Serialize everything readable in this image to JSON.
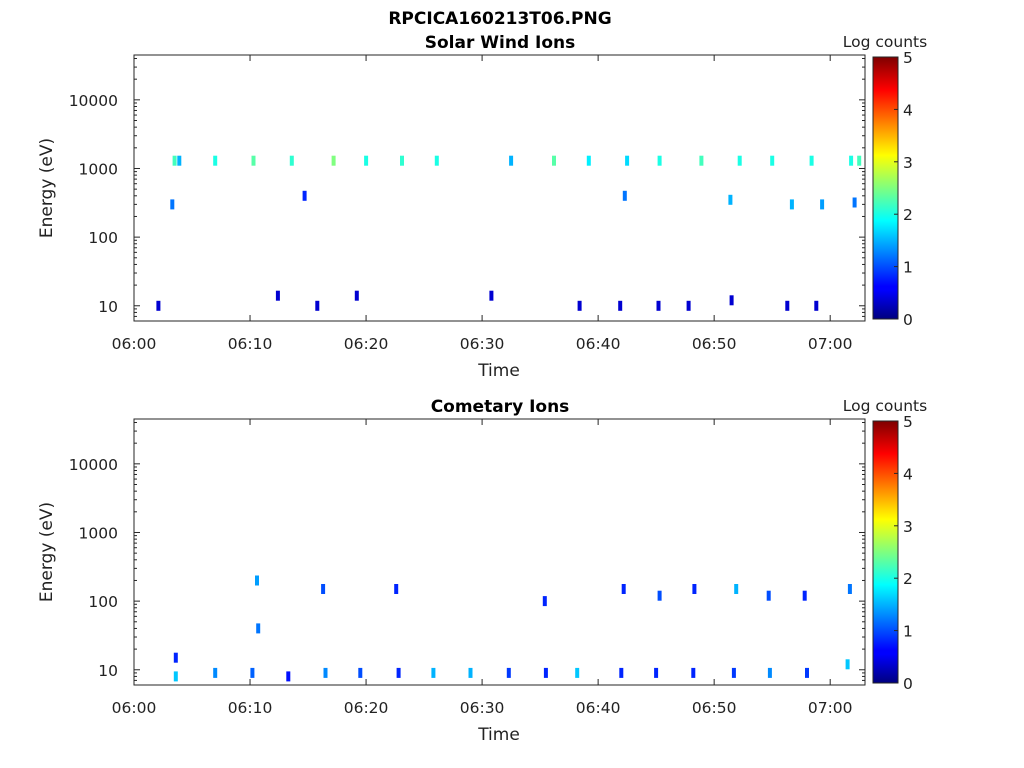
{
  "figure_title": "RPCICA160213T06.PNG",
  "colorbar": {
    "label": "Log counts",
    "ticks": [
      "0",
      "1",
      "2",
      "3",
      "4",
      "5"
    ],
    "range": [
      0,
      5
    ],
    "colormap": "jet"
  },
  "chart_data": [
    {
      "type": "heatmap",
      "title": "Solar Wind Ions",
      "xlabel": "Time",
      "ylabel": "Energy (eV)",
      "x_ticks": [
        "06:00",
        "06:10",
        "06:20",
        "06:30",
        "06:40",
        "06:50",
        "07:00"
      ],
      "y_ticks": [
        "10",
        "100",
        "1000",
        "10000"
      ],
      "xlim": [
        "06:00",
        "07:03"
      ],
      "ylim": [
        6,
        45000
      ],
      "yscale": "log",
      "cells": [
        [
          3.5,
          1300,
          2.2
        ],
        [
          3.9,
          1300,
          1.5
        ],
        [
          7.0,
          1300,
          2.0
        ],
        [
          10.3,
          1300,
          2.3
        ],
        [
          13.6,
          1300,
          2.1
        ],
        [
          17.2,
          1300,
          2.5
        ],
        [
          20.0,
          1300,
          2.0
        ],
        [
          23.1,
          1300,
          2.1
        ],
        [
          26.1,
          1300,
          2.0
        ],
        [
          32.5,
          1300,
          1.5
        ],
        [
          36.2,
          1300,
          2.3
        ],
        [
          39.2,
          1300,
          1.8
        ],
        [
          42.5,
          1300,
          1.7
        ],
        [
          45.3,
          1300,
          2.0
        ],
        [
          48.9,
          1300,
          2.2
        ],
        [
          52.2,
          1300,
          2.0
        ],
        [
          55.0,
          1300,
          2.0
        ],
        [
          58.4,
          1300,
          2.0
        ],
        [
          61.8,
          1300,
          2.0
        ],
        [
          62.5,
          1300,
          2.2
        ],
        [
          3.3,
          300,
          1.2
        ],
        [
          14.7,
          400,
          0.8
        ],
        [
          42.3,
          400,
          1.2
        ],
        [
          51.4,
          350,
          1.5
        ],
        [
          56.7,
          300,
          1.5
        ],
        [
          59.3,
          300,
          1.4
        ],
        [
          62.1,
          320,
          1.2
        ],
        [
          2.1,
          10,
          0.4
        ],
        [
          12.4,
          14,
          0.4
        ],
        [
          15.8,
          10,
          0.4
        ],
        [
          19.2,
          14,
          0.4
        ],
        [
          30.8,
          14,
          0.4
        ],
        [
          38.4,
          10,
          0.4
        ],
        [
          41.9,
          10,
          0.4
        ],
        [
          45.2,
          10,
          0.4
        ],
        [
          47.8,
          10,
          0.4
        ],
        [
          51.5,
          12,
          0.4
        ],
        [
          56.3,
          10,
          0.4
        ],
        [
          58.8,
          10,
          0.4
        ]
      ]
    },
    {
      "type": "heatmap",
      "title": "Cometary Ions",
      "xlabel": "Time",
      "ylabel": "Energy (eV)",
      "x_ticks": [
        "06:00",
        "06:10",
        "06:20",
        "06:30",
        "06:40",
        "06:50",
        "07:00"
      ],
      "y_ticks": [
        "10",
        "100",
        "1000",
        "10000"
      ],
      "xlim": [
        "06:00",
        "07:03"
      ],
      "ylim": [
        6,
        45000
      ],
      "yscale": "log",
      "cells": [
        [
          3.6,
          8,
          1.6
        ],
        [
          3.6,
          15,
          0.8
        ],
        [
          7.0,
          9,
          1.3
        ],
        [
          10.2,
          9,
          1.1
        ],
        [
          13.3,
          8,
          0.7
        ],
        [
          16.5,
          9,
          1.3
        ],
        [
          19.5,
          9,
          1.0
        ],
        [
          22.8,
          9,
          0.8
        ],
        [
          25.8,
          9,
          1.5
        ],
        [
          29.0,
          9,
          1.5
        ],
        [
          32.3,
          9,
          0.9
        ],
        [
          35.5,
          9,
          0.8
        ],
        [
          38.2,
          9,
          1.6
        ],
        [
          42.0,
          9,
          0.8
        ],
        [
          45.0,
          9,
          0.8
        ],
        [
          48.2,
          9,
          0.8
        ],
        [
          51.7,
          9,
          0.9
        ],
        [
          54.8,
          9,
          1.3
        ],
        [
          58.0,
          9,
          0.9
        ],
        [
          61.5,
          12,
          1.6
        ],
        [
          10.7,
          40,
          1.2
        ],
        [
          10.6,
          200,
          1.4
        ],
        [
          16.3,
          150,
          1.0
        ],
        [
          22.6,
          150,
          0.8
        ],
        [
          35.4,
          100,
          0.8
        ],
        [
          42.2,
          150,
          0.8
        ],
        [
          45.3,
          120,
          1.0
        ],
        [
          48.3,
          150,
          0.8
        ],
        [
          51.9,
          150,
          1.5
        ],
        [
          54.7,
          120,
          1.0
        ],
        [
          57.8,
          120,
          0.8
        ],
        [
          61.7,
          150,
          1.2
        ]
      ]
    }
  ]
}
